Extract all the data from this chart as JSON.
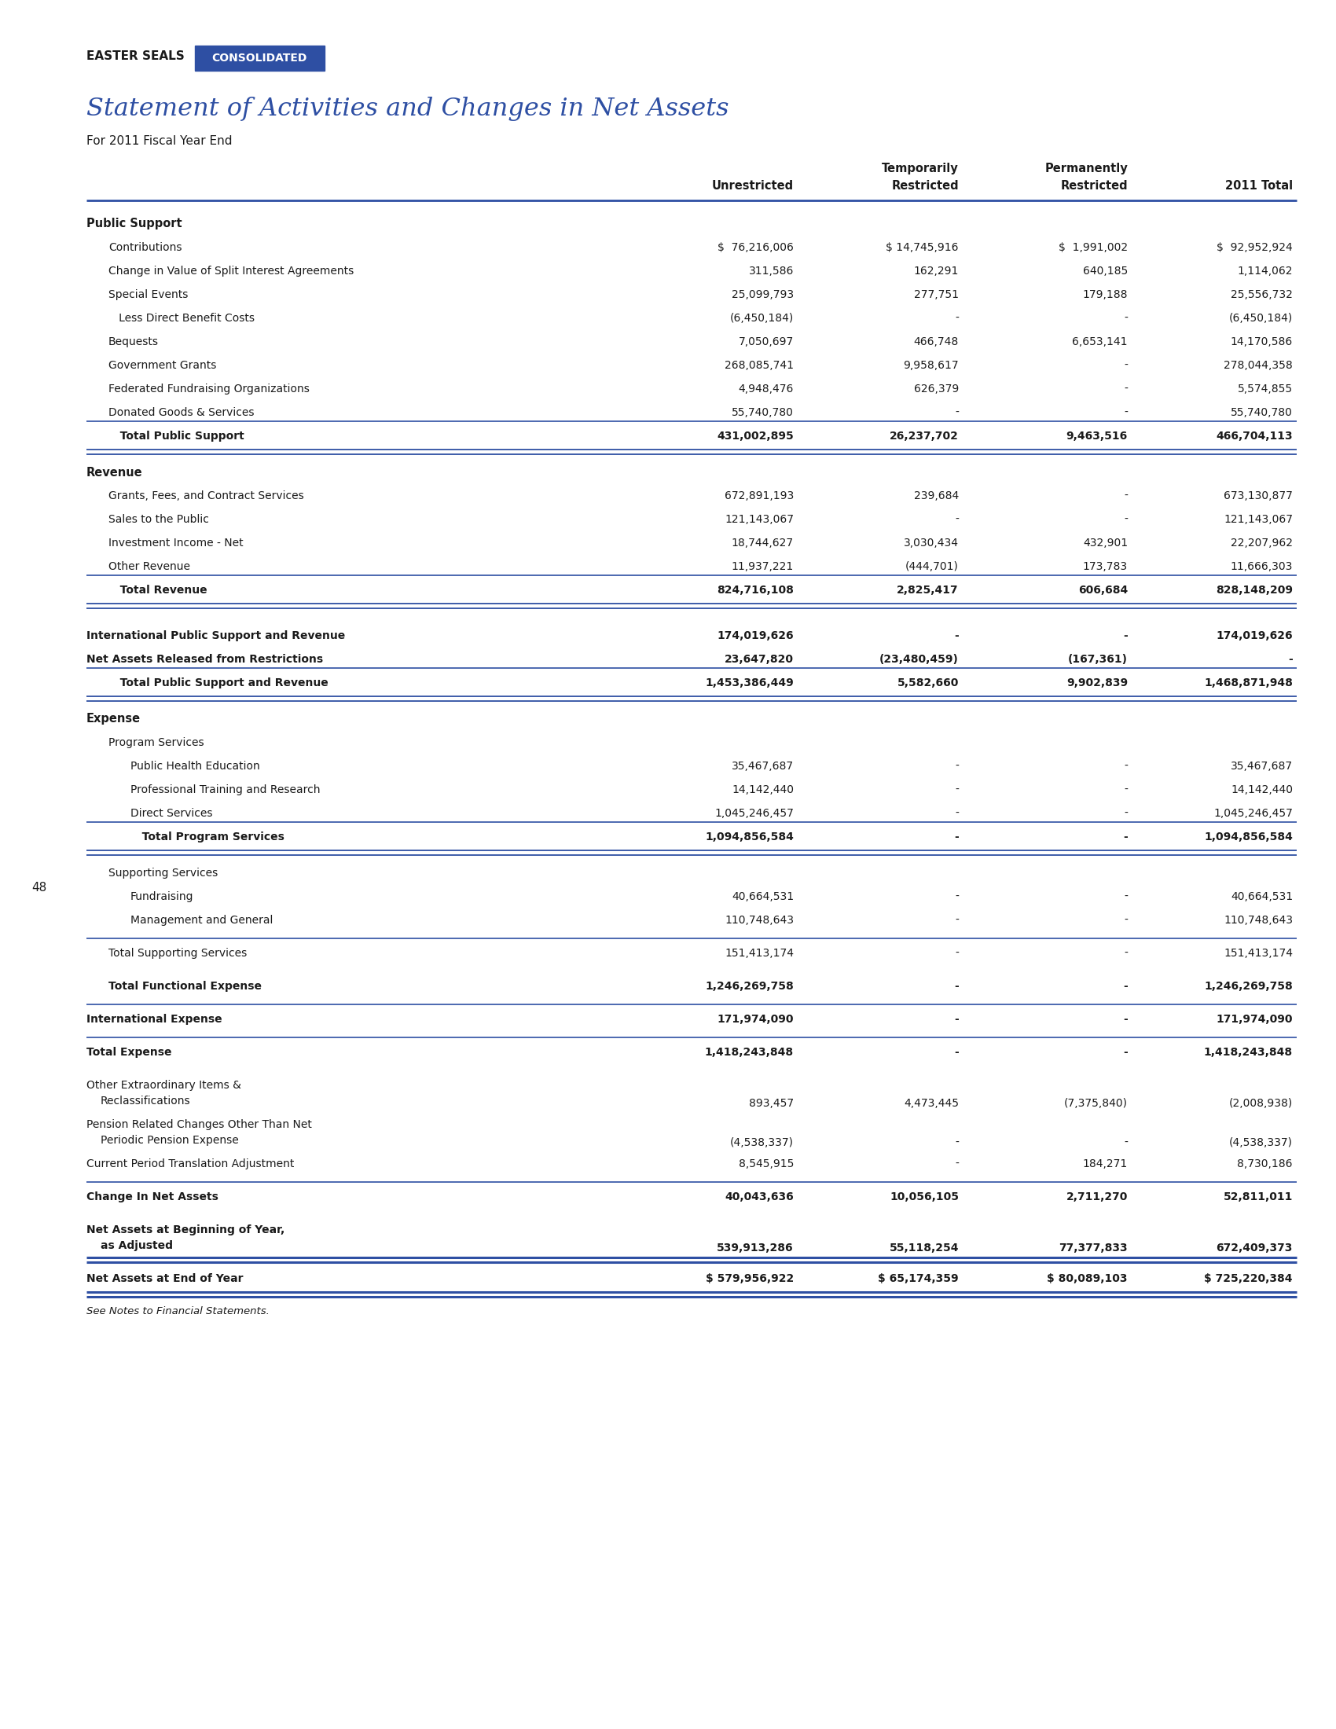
{
  "title": "Statement of Activities and Changes in Net Assets",
  "subtitle": "For 2011 Fiscal Year End",
  "header_label": "EASTER SEALS",
  "badge_text": "CONSOLIDATED",
  "badge_color": "#2E4FA3",
  "title_color": "#2E4FA3",
  "page_number": "48",
  "rows": [
    {
      "label": "Public Support",
      "indent": 0,
      "bold": true,
      "values": [
        "",
        "",
        "",
        ""
      ],
      "type": "section_header"
    },
    {
      "label": "Contributions",
      "indent": 1,
      "bold": false,
      "values": [
        "$  76,216,006",
        "$ 14,745,916",
        "$  1,991,002",
        "$  92,952,924"
      ],
      "type": "data"
    },
    {
      "label": "Change in Value of Split Interest Agreements",
      "indent": 1,
      "bold": false,
      "values": [
        "311,586",
        "162,291",
        "640,185",
        "1,114,062"
      ],
      "type": "data"
    },
    {
      "label": "Special Events",
      "indent": 1,
      "bold": false,
      "values": [
        "25,099,793",
        "277,751",
        "179,188",
        "25,556,732"
      ],
      "type": "data"
    },
    {
      "label": "   Less Direct Benefit Costs",
      "indent": 1,
      "bold": false,
      "values": [
        "(6,450,184)",
        "-",
        "-",
        "(6,450,184)"
      ],
      "type": "data"
    },
    {
      "label": "Bequests",
      "indent": 1,
      "bold": false,
      "values": [
        "7,050,697",
        "466,748",
        "6,653,141",
        "14,170,586"
      ],
      "type": "data"
    },
    {
      "label": "Government Grants",
      "indent": 1,
      "bold": false,
      "values": [
        "268,085,741",
        "9,958,617",
        "-",
        "278,044,358"
      ],
      "type": "data"
    },
    {
      "label": "Federated Fundraising Organizations",
      "indent": 1,
      "bold": false,
      "values": [
        "4,948,476",
        "626,379",
        "-",
        "5,574,855"
      ],
      "type": "data"
    },
    {
      "label": "Donated Goods & Services",
      "indent": 1,
      "bold": false,
      "values": [
        "55,740,780",
        "-",
        "-",
        "55,740,780"
      ],
      "type": "data"
    },
    {
      "label": "   Total Public Support",
      "indent": 1,
      "bold": true,
      "values": [
        "431,002,895",
        "26,237,702",
        "9,463,516",
        "466,704,113"
      ],
      "type": "total",
      "line_above": true,
      "double_line_below": true
    },
    {
      "label": "Revenue",
      "indent": 0,
      "bold": true,
      "values": [
        "",
        "",
        "",
        ""
      ],
      "type": "section_header"
    },
    {
      "label": "Grants, Fees, and Contract Services",
      "indent": 1,
      "bold": false,
      "values": [
        "672,891,193",
        "239,684",
        "-",
        "673,130,877"
      ],
      "type": "data"
    },
    {
      "label": "Sales to the Public",
      "indent": 1,
      "bold": false,
      "values": [
        "121,143,067",
        "-",
        "-",
        "121,143,067"
      ],
      "type": "data"
    },
    {
      "label": "Investment Income - Net",
      "indent": 1,
      "bold": false,
      "values": [
        "18,744,627",
        "3,030,434",
        "432,901",
        "22,207,962"
      ],
      "type": "data"
    },
    {
      "label": "Other Revenue",
      "indent": 1,
      "bold": false,
      "values": [
        "11,937,221",
        "(444,701)",
        "173,783",
        "11,666,303"
      ],
      "type": "data"
    },
    {
      "label": "   Total Revenue",
      "indent": 1,
      "bold": true,
      "values": [
        "824,716,108",
        "2,825,417",
        "606,684",
        "828,148,209"
      ],
      "type": "total",
      "line_above": true,
      "double_line_below": true
    },
    {
      "label": "",
      "indent": 0,
      "bold": false,
      "values": [
        "",
        "",
        "",
        ""
      ],
      "type": "spacer"
    },
    {
      "label": "International Public Support and Revenue",
      "indent": 0,
      "bold": true,
      "values": [
        "174,019,626",
        "-",
        "-",
        "174,019,626"
      ],
      "type": "data"
    },
    {
      "label": "Net Assets Released from Restrictions",
      "indent": 0,
      "bold": true,
      "values": [
        "23,647,820",
        "(23,480,459)",
        "(167,361)",
        "-"
      ],
      "type": "data"
    },
    {
      "label": "   Total Public Support and Revenue",
      "indent": 1,
      "bold": true,
      "values": [
        "1,453,386,449",
        "5,582,660",
        "9,902,839",
        "1,468,871,948"
      ],
      "type": "total",
      "line_above": true,
      "double_line_below": true
    },
    {
      "label": "Expense",
      "indent": 0,
      "bold": true,
      "values": [
        "",
        "",
        "",
        ""
      ],
      "type": "section_header"
    },
    {
      "label": "Program Services",
      "indent": 1,
      "bold": false,
      "values": [
        "",
        "",
        "",
        ""
      ],
      "type": "subsection"
    },
    {
      "label": "Public Health Education",
      "indent": 2,
      "bold": false,
      "values": [
        "35,467,687",
        "-",
        "-",
        "35,467,687"
      ],
      "type": "data"
    },
    {
      "label": "Professional Training and Research",
      "indent": 2,
      "bold": false,
      "values": [
        "14,142,440",
        "-",
        "-",
        "14,142,440"
      ],
      "type": "data"
    },
    {
      "label": "Direct Services",
      "indent": 2,
      "bold": false,
      "values": [
        "1,045,246,457",
        "-",
        "-",
        "1,045,246,457"
      ],
      "type": "data"
    },
    {
      "label": "   Total Program Services",
      "indent": 2,
      "bold": true,
      "values": [
        "1,094,856,584",
        "-",
        "-",
        "1,094,856,584"
      ],
      "type": "total",
      "line_above": true,
      "double_line_below": true
    },
    {
      "label": "Supporting Services",
      "indent": 1,
      "bold": false,
      "values": [
        "",
        "",
        "",
        ""
      ],
      "type": "subsection"
    },
    {
      "label": "Fundraising",
      "indent": 2,
      "bold": false,
      "values": [
        "40,664,531",
        "-",
        "-",
        "40,664,531"
      ],
      "type": "data"
    },
    {
      "label": "Management and General",
      "indent": 2,
      "bold": false,
      "values": [
        "110,748,643",
        "-",
        "-",
        "110,748,643"
      ],
      "type": "data"
    },
    {
      "label": "",
      "indent": 0,
      "bold": false,
      "values": [
        "",
        "",
        "",
        ""
      ],
      "type": "spacer"
    },
    {
      "label": "Total Supporting Services",
      "indent": 1,
      "bold": false,
      "values": [
        "151,413,174",
        "-",
        "-",
        "151,413,174"
      ],
      "type": "total",
      "line_above": true,
      "double_line_below": false
    },
    {
      "label": "",
      "indent": 0,
      "bold": false,
      "values": [
        "",
        "",
        "",
        ""
      ],
      "type": "spacer"
    },
    {
      "label": "Total Functional Expense",
      "indent": 1,
      "bold": true,
      "values": [
        "1,246,269,758",
        "-",
        "-",
        "1,246,269,758"
      ],
      "type": "total_bold",
      "line_above": false,
      "double_line_below": false
    },
    {
      "label": "",
      "indent": 0,
      "bold": false,
      "values": [
        "",
        "",
        "",
        ""
      ],
      "type": "spacer"
    },
    {
      "label": "International Expense",
      "indent": 0,
      "bold": true,
      "values": [
        "171,974,090",
        "-",
        "-",
        "171,974,090"
      ],
      "type": "total_bold",
      "line_above": true,
      "double_line_below": false
    },
    {
      "label": "",
      "indent": 0,
      "bold": false,
      "values": [
        "",
        "",
        "",
        ""
      ],
      "type": "spacer"
    },
    {
      "label": "Total Expense",
      "indent": 0,
      "bold": true,
      "values": [
        "1,418,243,848",
        "-",
        "-",
        "1,418,243,848"
      ],
      "type": "total_bold",
      "line_above": true,
      "double_line_below": false
    },
    {
      "label": "",
      "indent": 0,
      "bold": false,
      "values": [
        "",
        "",
        "",
        ""
      ],
      "type": "spacer"
    },
    {
      "label": "Other Extraordinary Items &\nReclassifications",
      "indent": 0,
      "bold": false,
      "values": [
        "893,457",
        "4,473,445",
        "(7,375,840)",
        "(2,008,938)"
      ],
      "type": "data_multi"
    },
    {
      "label": "Pension Related Changes Other Than Net\nPeriodic Pension Expense",
      "indent": 0,
      "bold": false,
      "values": [
        "(4,538,337)",
        "-",
        "-",
        "(4,538,337)"
      ],
      "type": "data_multi"
    },
    {
      "label": "Current Period Translation Adjustment",
      "indent": 0,
      "bold": false,
      "values": [
        "8,545,915",
        "-",
        "184,271",
        "8,730,186"
      ],
      "type": "data"
    },
    {
      "label": "",
      "indent": 0,
      "bold": false,
      "values": [
        "",
        "",
        "",
        ""
      ],
      "type": "spacer"
    },
    {
      "label": "Change In Net Assets",
      "indent": 0,
      "bold": true,
      "values": [
        "40,043,636",
        "10,056,105",
        "2,711,270",
        "52,811,011"
      ],
      "type": "total",
      "line_above": true,
      "double_line_below": false
    },
    {
      "label": "",
      "indent": 0,
      "bold": false,
      "values": [
        "",
        "",
        "",
        ""
      ],
      "type": "spacer"
    },
    {
      "label": "Net Assets at Beginning of Year,\nas Adjusted",
      "indent": 0,
      "bold": true,
      "values": [
        "539,913,286",
        "55,118,254",
        "77,377,833",
        "672,409,373"
      ],
      "type": "data_multi_bold"
    },
    {
      "label": "",
      "indent": 0,
      "bold": false,
      "values": [
        "",
        "",
        "",
        ""
      ],
      "type": "spacer"
    },
    {
      "label": "Net Assets at End of Year",
      "indent": 0,
      "bold": true,
      "values": [
        "$ 579,956,922",
        "$ 65,174,359",
        "$ 80,089,103",
        "$ 725,220,384"
      ],
      "type": "final_total"
    },
    {
      "label": "",
      "indent": 0,
      "bold": false,
      "values": [
        "",
        "",
        "",
        ""
      ],
      "type": "spacer"
    },
    {
      "label": "See Notes to Financial Statements.",
      "indent": 0,
      "bold": false,
      "values": [
        "",
        "",
        "",
        ""
      ],
      "type": "footnote"
    }
  ]
}
